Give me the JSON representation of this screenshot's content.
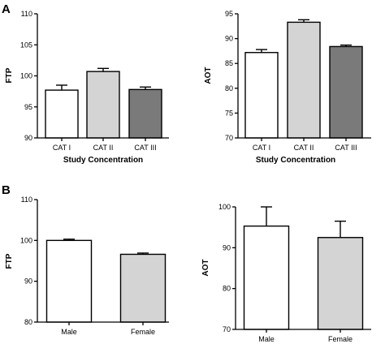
{
  "panel_labels": [
    "A",
    "B"
  ],
  "chart_data": [
    {
      "type": "bar",
      "categories": [
        "CAT I",
        "CAT II",
        "CAT III"
      ],
      "values": [
        97.7,
        100.7,
        97.8
      ],
      "errors": [
        0.8,
        0.5,
        0.4
      ],
      "colors": [
        "#ffffff",
        "#d4d4d4",
        "#7a7a7a"
      ],
      "ylabel": "FTP",
      "xlabel": "Study Concentration",
      "ylim": [
        90,
        110
      ],
      "yticks": [
        90,
        95,
        100,
        105,
        110
      ]
    },
    {
      "type": "bar",
      "categories": [
        "CAT I",
        "CAT II",
        "CAT III"
      ],
      "values": [
        87.2,
        93.3,
        88.4
      ],
      "errors": [
        0.6,
        0.5,
        0.3
      ],
      "colors": [
        "#ffffff",
        "#d4d4d4",
        "#7a7a7a"
      ],
      "ylabel": "AOT",
      "xlabel": "Study Concentration",
      "ylim": [
        70,
        95
      ],
      "yticks": [
        70,
        75,
        80,
        85,
        90,
        95
      ]
    },
    {
      "type": "bar",
      "categories": [
        "Male",
        "Female"
      ],
      "values": [
        100.0,
        96.6
      ],
      "errors": [
        0.3,
        0.3
      ],
      "colors": [
        "#ffffff",
        "#d4d4d4"
      ],
      "ylabel": "FTP",
      "xlabel": "",
      "ylim": [
        80,
        110
      ],
      "yticks": [
        80,
        90,
        100,
        110
      ]
    },
    {
      "type": "bar",
      "categories": [
        "Male",
        "Female"
      ],
      "values": [
        95.3,
        92.5
      ],
      "errors": [
        4.7,
        4.0
      ],
      "colors": [
        "#ffffff",
        "#d4d4d4"
      ],
      "ylabel": "AOT",
      "xlabel": "",
      "ylim": [
        70,
        100
      ],
      "yticks": [
        70,
        80,
        90,
        100
      ]
    }
  ]
}
